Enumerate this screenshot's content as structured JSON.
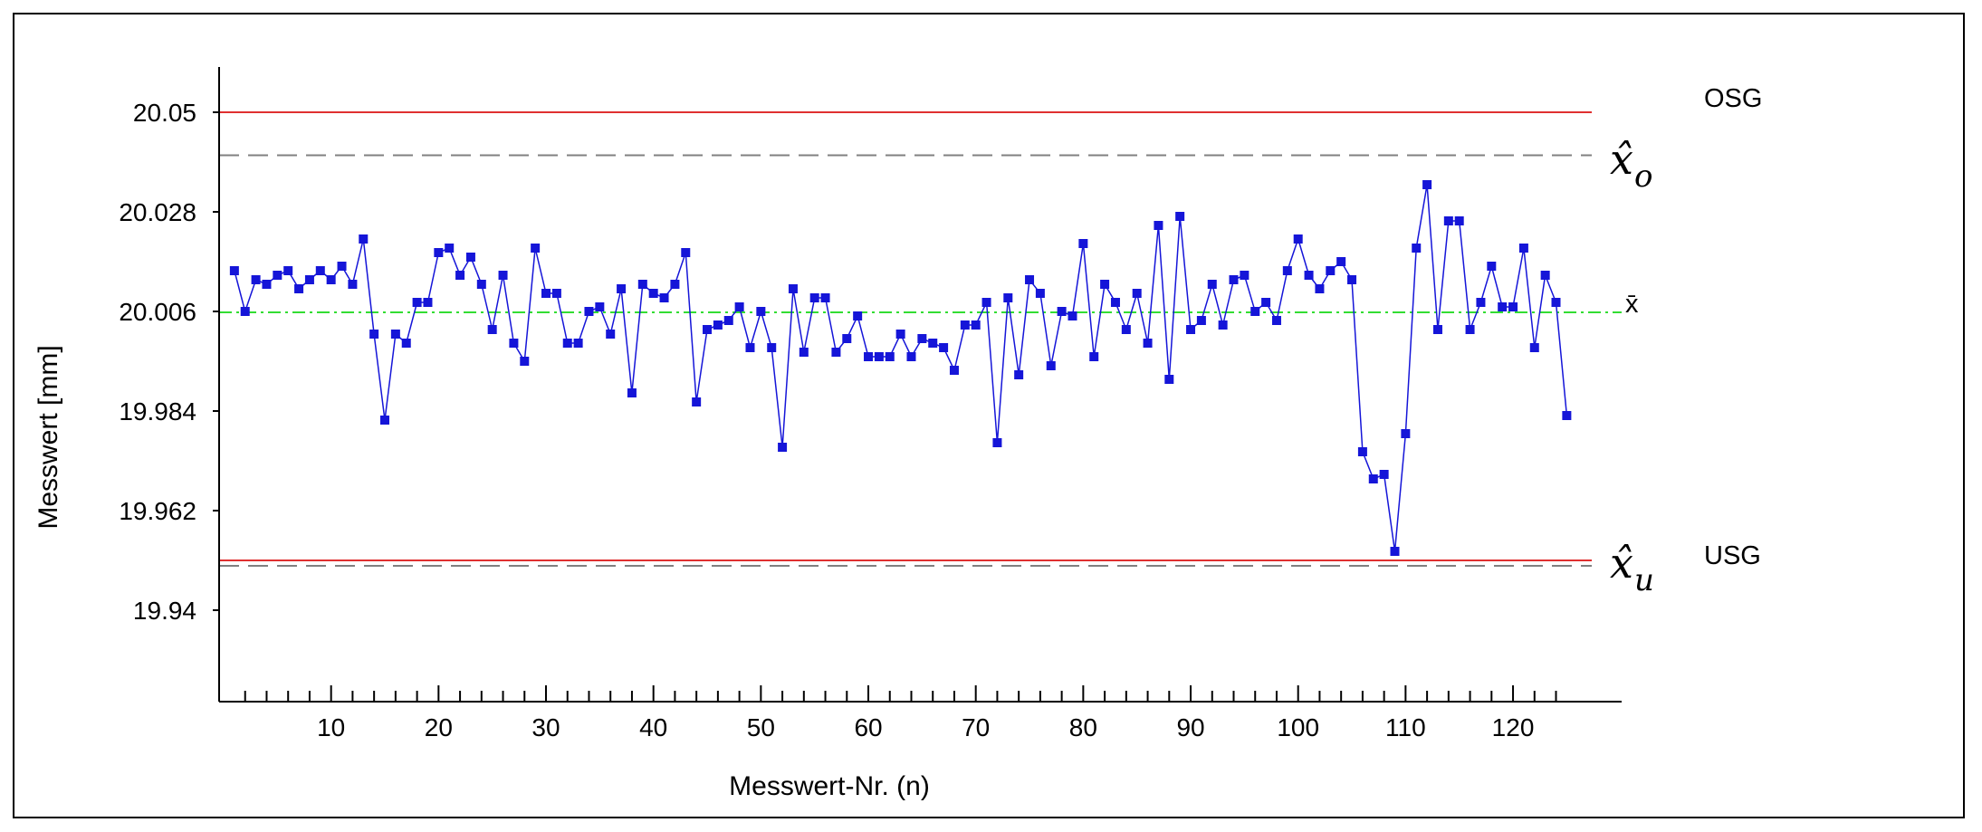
{
  "chart_data": {
    "type": "line",
    "xlabel": "Messwert-Nr. (n)",
    "ylabel": "Messwert [mm]",
    "x_tick_labels": [
      "10",
      "20",
      "30",
      "40",
      "50",
      "60",
      "70",
      "80",
      "90",
      "100",
      "110",
      "120"
    ],
    "y_tick_labels": [
      "20.05",
      "20.028",
      "20.006",
      "19.984",
      "19.962",
      "19.94"
    ],
    "xlim": [
      0,
      130
    ],
    "ylim": [
      19.918,
      20.06
    ],
    "y_ticks": [
      20.05,
      20.028,
      20.006,
      19.984,
      19.962,
      19.94
    ],
    "x_ticks": [
      10,
      20,
      30,
      40,
      50,
      60,
      70,
      80,
      90,
      100,
      110,
      120
    ],
    "reference_lines": [
      {
        "label": "OSG",
        "value": 20.05,
        "color": "#e03030",
        "style": "solid"
      },
      {
        "label": "x̂o",
        "value": 20.0405,
        "color": "#808080",
        "style": "dashed"
      },
      {
        "label": "x̄",
        "value": 20.0058,
        "color": "#33dd33",
        "style": "dashdot"
      },
      {
        "label": "USG",
        "value": 19.951,
        "color": "#e03030",
        "style": "solid"
      },
      {
        "label": "x̂u",
        "value": 19.9498,
        "color": "#808080",
        "style": "dashed"
      }
    ],
    "series": [
      {
        "color": "#1515d8",
        "x": [
          1,
          2,
          3,
          4,
          5,
          6,
          7,
          8,
          9,
          10,
          11,
          12,
          13,
          14,
          15,
          16,
          17,
          18,
          19,
          20,
          21,
          22,
          23,
          24,
          25,
          26,
          27,
          28,
          29,
          30,
          31,
          32,
          33,
          34,
          35,
          36,
          37,
          38,
          39,
          40,
          41,
          42,
          43,
          44,
          45,
          46,
          47,
          48,
          49,
          50,
          51,
          52,
          53,
          54,
          55,
          56,
          57,
          58,
          59,
          60,
          61,
          62,
          63,
          64,
          65,
          66,
          67,
          68,
          69,
          70,
          71,
          72,
          73,
          74,
          75,
          76,
          77,
          78,
          79,
          80,
          81,
          82,
          83,
          84,
          85,
          86,
          87,
          88,
          89,
          90,
          91,
          92,
          93,
          94,
          95,
          96,
          97,
          98,
          99,
          100,
          101,
          102,
          103,
          104,
          105,
          106,
          107,
          108,
          109,
          110,
          111,
          112,
          113,
          114,
          115,
          116,
          117,
          118,
          119,
          120,
          121,
          122,
          123,
          124,
          125
        ],
        "values": [
          20.015,
          20.006,
          20.013,
          20.012,
          20.014,
          20.015,
          20.011,
          20.013,
          20.015,
          20.013,
          20.016,
          20.012,
          20.022,
          20.001,
          19.982,
          20.001,
          19.999,
          20.008,
          20.008,
          20.019,
          20.02,
          20.014,
          20.018,
          20.012,
          20.002,
          20.014,
          19.999,
          19.995,
          20.02,
          20.01,
          20.01,
          19.999,
          19.999,
          20.006,
          20.007,
          20.001,
          20.011,
          19.988,
          20.012,
          20.01,
          20.009,
          20.012,
          20.019,
          19.986,
          20.002,
          20.003,
          20.004,
          20.007,
          19.998,
          20.006,
          19.998,
          19.976,
          20.011,
          19.997,
          20.009,
          20.009,
          19.997,
          20.0,
          20.005,
          19.996,
          19.996,
          19.996,
          20.001,
          19.996,
          20.0,
          19.999,
          19.998,
          19.993,
          20.003,
          20.003,
          20.008,
          19.977,
          20.009,
          19.992,
          20.013,
          20.01,
          19.994,
          20.006,
          20.005,
          20.021,
          19.996,
          20.012,
          20.008,
          20.002,
          20.01,
          19.999,
          20.025,
          19.991,
          20.027,
          20.002,
          20.004,
          20.012,
          20.003,
          20.013,
          20.014,
          20.006,
          20.008,
          20.004,
          20.015,
          20.022,
          20.014,
          20.011,
          20.015,
          20.017,
          20.013,
          19.975,
          19.969,
          19.97,
          19.953,
          19.979,
          20.02,
          20.034,
          20.002,
          20.026,
          20.026,
          20.002,
          20.008,
          20.016,
          20.007,
          20.007,
          20.02,
          19.998,
          20.014,
          20.008,
          19.983
        ]
      }
    ]
  }
}
